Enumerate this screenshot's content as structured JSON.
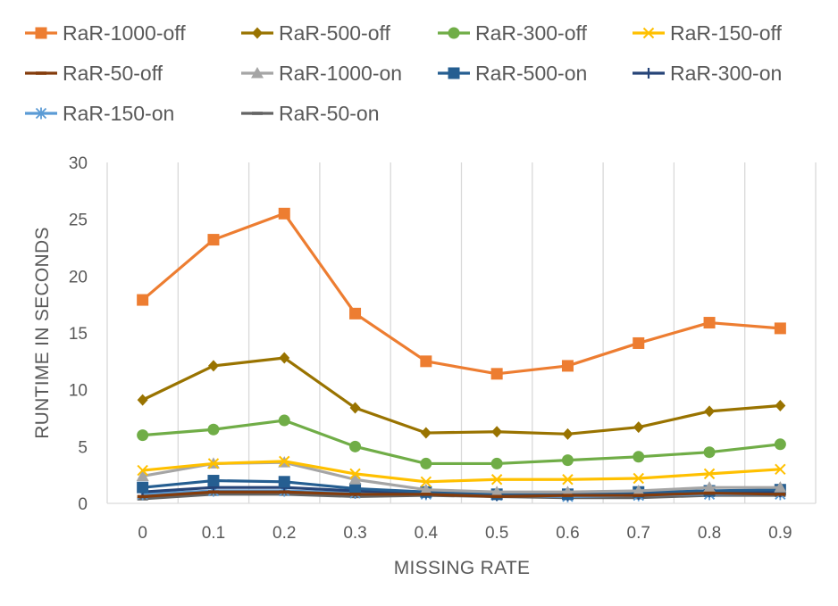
{
  "chart_data": {
    "type": "line",
    "title": "",
    "xlabel": "MISSING RATE",
    "ylabel": "RUNTIME IN SECONDS",
    "categories": [
      "0",
      "0.1",
      "0.2",
      "0.3",
      "0.4",
      "0.5",
      "0.6",
      "0.7",
      "0.8",
      "0.9"
    ],
    "ylim": [
      0,
      30
    ],
    "yticks": [
      "0",
      "5",
      "10",
      "15",
      "20",
      "25",
      "30"
    ],
    "grid": "vertical",
    "legend_position": "top",
    "series": [
      {
        "name": "RaR-1000-off",
        "color": "#ED7D31",
        "marker": "square",
        "values": [
          17.9,
          23.2,
          25.5,
          16.7,
          12.5,
          11.4,
          12.1,
          14.1,
          15.9,
          15.4
        ]
      },
      {
        "name": "RaR-500-off",
        "color": "#997300",
        "marker": "diamond",
        "values": [
          9.1,
          12.1,
          12.8,
          8.4,
          6.2,
          6.3,
          6.1,
          6.7,
          8.1,
          8.6
        ]
      },
      {
        "name": "RaR-300-off",
        "color": "#70AD47",
        "marker": "circle",
        "values": [
          6.0,
          6.5,
          7.3,
          5.0,
          3.5,
          3.5,
          3.8,
          4.1,
          4.5,
          5.2
        ]
      },
      {
        "name": "RaR-150-off",
        "color": "#FFC000",
        "marker": "x",
        "values": [
          2.9,
          3.5,
          3.7,
          2.6,
          1.9,
          2.1,
          2.1,
          2.2,
          2.6,
          3.0
        ]
      },
      {
        "name": "RaR-50-off",
        "color": "#843C0C",
        "marker": "dash",
        "values": [
          0.6,
          1.0,
          1.0,
          0.8,
          0.8,
          0.6,
          0.7,
          0.7,
          0.9,
          0.8
        ]
      },
      {
        "name": "RaR-1000-on",
        "color": "#A5A5A5",
        "marker": "triangle",
        "values": [
          2.4,
          3.5,
          3.6,
          2.1,
          1.2,
          1.0,
          1.0,
          1.1,
          1.4,
          1.4
        ]
      },
      {
        "name": "RaR-500-on",
        "color": "#255E91",
        "marker": "square",
        "values": [
          1.4,
          2.0,
          1.9,
          1.3,
          1.0,
          0.8,
          0.8,
          1.0,
          1.1,
          1.2
        ]
      },
      {
        "name": "RaR-300-on",
        "color": "#264478",
        "marker": "plus",
        "values": [
          1.0,
          1.4,
          1.4,
          1.1,
          0.9,
          0.7,
          0.7,
          0.8,
          1.0,
          1.0
        ]
      },
      {
        "name": "RaR-150-on",
        "color": "#5B9BD5",
        "marker": "asterisk",
        "values": [
          0.8,
          1.1,
          1.1,
          0.9,
          0.8,
          0.7,
          0.6,
          0.7,
          0.8,
          0.8
        ]
      },
      {
        "name": "RaR-50-on",
        "color": "#636363",
        "marker": "dash",
        "values": [
          0.4,
          0.8,
          0.8,
          0.6,
          0.7,
          0.6,
          0.5,
          0.5,
          0.7,
          0.7
        ]
      }
    ]
  }
}
